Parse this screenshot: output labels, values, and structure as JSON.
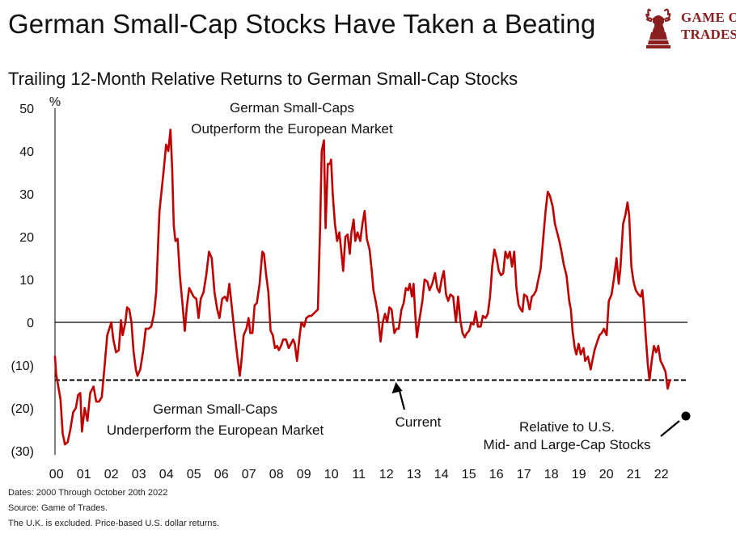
{
  "title": "German Small-Cap Stocks Have Taken a Beating",
  "subtitle": "Trailing 12-Month Relative Returns to German Small-Cap Stocks",
  "logo": {
    "line1": "GAME OF",
    "line2": "TRADES",
    "color": "#8b1f1f"
  },
  "footer": {
    "line1": "Dates: 2000 Through  October 20th 2022",
    "line2": "Source: Game of Trades.",
    "line3": "The U.K.  is excluded. Price-based U.S. dollar returns."
  },
  "chart_data": {
    "type": "line",
    "title": "Trailing 12-Month Relative Returns to German Small-Cap Stocks",
    "xlabel": "",
    "ylabel": "%",
    "xlim": [
      2000,
      2023
    ],
    "ylim": [
      -30,
      50
    ],
    "yticks": [
      50,
      40,
      30,
      20,
      10,
      0,
      -10,
      -20,
      -30
    ],
    "ytick_labels": [
      "50",
      "40",
      "30",
      "20",
      "10",
      "0",
      "(10)",
      "(20)",
      "(30)"
    ],
    "xticks": [
      2000,
      2001,
      2002,
      2003,
      2004,
      2005,
      2006,
      2007,
      2008,
      2009,
      2010,
      2011,
      2012,
      2013,
      2014,
      2015,
      2016,
      2017,
      2018,
      2019,
      2020,
      2021,
      2022
    ],
    "xtick_labels": [
      "00",
      "01",
      "02",
      "03",
      "04",
      "05",
      "06",
      "07",
      "08",
      "09",
      "10",
      "11",
      "12",
      "13",
      "14",
      "15",
      "16",
      "17",
      "18",
      "19",
      "20",
      "21",
      "22"
    ],
    "grid": false,
    "zero_line": true,
    "current_level": -13.5,
    "series": [
      {
        "color": "#c00000",
        "points": [
          [
            2000.0,
            -8
          ],
          [
            2000.04,
            -12
          ],
          [
            2000.12,
            -15
          ],
          [
            2000.2,
            -18
          ],
          [
            2000.28,
            -26
          ],
          [
            2000.36,
            -28.5
          ],
          [
            2000.46,
            -28
          ],
          [
            2000.56,
            -25
          ],
          [
            2000.66,
            -21
          ],
          [
            2000.76,
            -20
          ],
          [
            2000.84,
            -17
          ],
          [
            2000.92,
            -16.5
          ],
          [
            2000.98,
            -25.5
          ],
          [
            2001.08,
            -20
          ],
          [
            2001.18,
            -23
          ],
          [
            2001.28,
            -16.5
          ],
          [
            2001.4,
            -15
          ],
          [
            2001.5,
            -18.5
          ],
          [
            2001.6,
            -18.5
          ],
          [
            2001.7,
            -17.5
          ],
          [
            2001.8,
            -10.5
          ],
          [
            2001.9,
            -3
          ],
          [
            2002.0,
            -1
          ],
          [
            2002.05,
            0
          ],
          [
            2002.12,
            -4
          ],
          [
            2002.22,
            -7
          ],
          [
            2002.32,
            -6.5
          ],
          [
            2002.4,
            0.5
          ],
          [
            2002.46,
            -3
          ],
          [
            2002.56,
            0
          ],
          [
            2002.62,
            3.5
          ],
          [
            2002.7,
            3
          ],
          [
            2002.78,
            0
          ],
          [
            2002.86,
            -7
          ],
          [
            2002.94,
            -11
          ],
          [
            2003.0,
            -12.5
          ],
          [
            2003.1,
            -11
          ],
          [
            2003.2,
            -7
          ],
          [
            2003.3,
            -1.5
          ],
          [
            2003.4,
            -1.5
          ],
          [
            2003.5,
            -1
          ],
          [
            2003.6,
            2
          ],
          [
            2003.68,
            7
          ],
          [
            2003.76,
            20
          ],
          [
            2003.8,
            26
          ],
          [
            2003.88,
            31
          ],
          [
            2003.96,
            36
          ],
          [
            2004.04,
            41.5
          ],
          [
            2004.12,
            40
          ],
          [
            2004.2,
            45
          ],
          [
            2004.26,
            36
          ],
          [
            2004.32,
            22.5
          ],
          [
            2004.38,
            19
          ],
          [
            2004.46,
            19.5
          ],
          [
            2004.54,
            11
          ],
          [
            2004.64,
            4
          ],
          [
            2004.72,
            -2
          ],
          [
            2004.8,
            4
          ],
          [
            2004.88,
            8
          ],
          [
            2004.96,
            7
          ],
          [
            2005.04,
            6
          ],
          [
            2005.14,
            5.5
          ],
          [
            2005.22,
            1
          ],
          [
            2005.3,
            5.5
          ],
          [
            2005.4,
            7
          ],
          [
            2005.5,
            11
          ],
          [
            2005.6,
            16.5
          ],
          [
            2005.7,
            15
          ],
          [
            2005.8,
            7
          ],
          [
            2005.9,
            3
          ],
          [
            2005.98,
            1
          ],
          [
            2006.08,
            5.5
          ],
          [
            2006.18,
            6
          ],
          [
            2006.26,
            5
          ],
          [
            2006.34,
            9
          ],
          [
            2006.44,
            3
          ],
          [
            2006.54,
            -3
          ],
          [
            2006.64,
            -8.5
          ],
          [
            2006.72,
            -12.5
          ],
          [
            2006.78,
            -9
          ],
          [
            2006.86,
            -3
          ],
          [
            2006.96,
            -1.5
          ],
          [
            2007.04,
            1
          ],
          [
            2007.1,
            -2.5
          ],
          [
            2007.18,
            -2.5
          ],
          [
            2007.26,
            4
          ],
          [
            2007.34,
            4.5
          ],
          [
            2007.44,
            9
          ],
          [
            2007.54,
            16.5
          ],
          [
            2007.6,
            16
          ],
          [
            2007.68,
            11
          ],
          [
            2007.76,
            7
          ],
          [
            2007.84,
            -2
          ],
          [
            2007.92,
            -3
          ],
          [
            2008.0,
            -6
          ],
          [
            2008.08,
            -5.5
          ],
          [
            2008.14,
            -6.5
          ],
          [
            2008.22,
            -5.5
          ],
          [
            2008.3,
            -4
          ],
          [
            2008.4,
            -4
          ],
          [
            2008.5,
            -6
          ],
          [
            2008.58,
            -5
          ],
          [
            2008.66,
            -4
          ],
          [
            2008.72,
            -5
          ],
          [
            2008.8,
            -9
          ],
          [
            2008.9,
            -3
          ],
          [
            2008.96,
            0
          ],
          [
            2009.06,
            -1
          ],
          [
            2009.14,
            1
          ],
          [
            2009.24,
            1.5
          ],
          [
            2009.32,
            1.5
          ],
          [
            2009.4,
            2
          ],
          [
            2009.48,
            2.5
          ],
          [
            2009.56,
            3
          ],
          [
            2009.64,
            22
          ],
          [
            2009.7,
            40
          ],
          [
            2009.78,
            42.5
          ],
          [
            2009.84,
            22
          ],
          [
            2009.92,
            37
          ],
          [
            2010.0,
            37
          ],
          [
            2010.04,
            38
          ],
          [
            2010.1,
            30
          ],
          [
            2010.18,
            23
          ],
          [
            2010.26,
            19
          ],
          [
            2010.34,
            21
          ],
          [
            2010.42,
            16
          ],
          [
            2010.48,
            12
          ],
          [
            2010.56,
            20
          ],
          [
            2010.64,
            20.5
          ],
          [
            2010.72,
            16
          ],
          [
            2010.78,
            21
          ],
          [
            2010.86,
            24
          ],
          [
            2010.92,
            19
          ],
          [
            2011.0,
            21
          ],
          [
            2011.1,
            19
          ],
          [
            2011.18,
            23
          ],
          [
            2011.26,
            26
          ],
          [
            2011.34,
            19.5
          ],
          [
            2011.44,
            17
          ],
          [
            2011.52,
            12
          ],
          [
            2011.58,
            7.5
          ],
          [
            2011.66,
            5
          ],
          [
            2011.74,
            2
          ],
          [
            2011.84,
            -4.5
          ],
          [
            2011.92,
            0
          ],
          [
            2012.0,
            2
          ],
          [
            2012.08,
            0
          ],
          [
            2012.16,
            3.5
          ],
          [
            2012.24,
            3
          ],
          [
            2012.34,
            -2.5
          ],
          [
            2012.42,
            -1.5
          ],
          [
            2012.5,
            -1.5
          ],
          [
            2012.6,
            3
          ],
          [
            2012.68,
            4.5
          ],
          [
            2012.76,
            8
          ],
          [
            2012.84,
            7.5
          ],
          [
            2012.9,
            9
          ],
          [
            2012.98,
            6
          ],
          [
            2013.04,
            9
          ],
          [
            2013.1,
            2
          ],
          [
            2013.16,
            -3.5
          ],
          [
            2013.26,
            1
          ],
          [
            2013.36,
            5
          ],
          [
            2013.44,
            10
          ],
          [
            2013.54,
            9.5
          ],
          [
            2013.62,
            7.5
          ],
          [
            2013.72,
            9
          ],
          [
            2013.82,
            11.5
          ],
          [
            2013.9,
            8
          ],
          [
            2013.98,
            7
          ],
          [
            2014.06,
            10
          ],
          [
            2014.14,
            12
          ],
          [
            2014.22,
            6.5
          ],
          [
            2014.3,
            5
          ],
          [
            2014.38,
            6.5
          ],
          [
            2014.48,
            6
          ],
          [
            2014.58,
            0
          ],
          [
            2014.66,
            6
          ],
          [
            2014.74,
            0.5
          ],
          [
            2014.82,
            -2.5
          ],
          [
            2014.9,
            -3.5
          ],
          [
            2014.98,
            -2.5
          ],
          [
            2015.06,
            -2
          ],
          [
            2015.14,
            0
          ],
          [
            2015.22,
            -0.5
          ],
          [
            2015.3,
            2.5
          ],
          [
            2015.38,
            -1
          ],
          [
            2015.48,
            -1
          ],
          [
            2015.56,
            1.5
          ],
          [
            2015.66,
            1
          ],
          [
            2015.74,
            2
          ],
          [
            2015.82,
            6
          ],
          [
            2015.9,
            13
          ],
          [
            2015.98,
            17
          ],
          [
            2016.06,
            15
          ],
          [
            2016.14,
            12
          ],
          [
            2016.22,
            11
          ],
          [
            2016.3,
            11.5
          ],
          [
            2016.38,
            16.5
          ],
          [
            2016.46,
            15
          ],
          [
            2016.54,
            16.5
          ],
          [
            2016.62,
            13
          ],
          [
            2016.7,
            16.5
          ],
          [
            2016.78,
            8
          ],
          [
            2016.86,
            4
          ],
          [
            2016.94,
            3
          ],
          [
            2017.0,
            2.5
          ],
          [
            2017.06,
            6.5
          ],
          [
            2017.16,
            6
          ],
          [
            2017.26,
            3
          ],
          [
            2017.34,
            6
          ],
          [
            2017.42,
            6.5
          ],
          [
            2017.5,
            7.5
          ],
          [
            2017.56,
            9.5
          ],
          [
            2017.66,
            12.5
          ],
          [
            2017.76,
            20
          ],
          [
            2017.84,
            26
          ],
          [
            2017.92,
            30.5
          ],
          [
            2018.0,
            29.5
          ],
          [
            2018.1,
            27
          ],
          [
            2018.18,
            23
          ],
          [
            2018.26,
            21
          ],
          [
            2018.34,
            19
          ],
          [
            2018.42,
            16.5
          ],
          [
            2018.5,
            13.5
          ],
          [
            2018.6,
            11
          ],
          [
            2018.7,
            5
          ],
          [
            2018.76,
            3
          ],
          [
            2018.82,
            -2
          ],
          [
            2018.9,
            -6
          ],
          [
            2018.96,
            -7.5
          ],
          [
            2019.04,
            -5
          ],
          [
            2019.12,
            -7.5
          ],
          [
            2019.22,
            -6
          ],
          [
            2019.28,
            -9
          ],
          [
            2019.38,
            -8
          ],
          [
            2019.48,
            -11
          ],
          [
            2019.54,
            -9
          ],
          [
            2019.62,
            -6.5
          ],
          [
            2019.72,
            -4.5
          ],
          [
            2019.8,
            -3
          ],
          [
            2019.88,
            -2.5
          ],
          [
            2019.96,
            -1.5
          ],
          [
            2020.06,
            -3
          ],
          [
            2020.14,
            5
          ],
          [
            2020.24,
            6.5
          ],
          [
            2020.32,
            10
          ],
          [
            2020.42,
            15
          ],
          [
            2020.5,
            9
          ],
          [
            2020.56,
            12.5
          ],
          [
            2020.66,
            23
          ],
          [
            2020.74,
            25
          ],
          [
            2020.82,
            28
          ],
          [
            2020.88,
            25
          ],
          [
            2020.96,
            13
          ],
          [
            2021.04,
            9.5
          ],
          [
            2021.12,
            7.5
          ],
          [
            2021.22,
            6.5
          ],
          [
            2021.3,
            6
          ],
          [
            2021.36,
            7.5
          ],
          [
            2021.42,
            3
          ],
          [
            2021.48,
            -3
          ],
          [
            2021.56,
            -10
          ],
          [
            2021.62,
            -13.5
          ],
          [
            2021.7,
            -9
          ],
          [
            2021.78,
            -5.5
          ],
          [
            2021.86,
            -7
          ],
          [
            2021.94,
            -5.5
          ],
          [
            2022.02,
            -9
          ],
          [
            2022.1,
            -10
          ],
          [
            2022.2,
            -11.5
          ],
          [
            2022.28,
            -15.5
          ],
          [
            2022.36,
            -13.5
          ]
        ]
      }
    ],
    "annotations": {
      "outperform_line1": "German Small-Caps",
      "outperform_line2": "Outperform the European Market",
      "underperform_line1": "German Small-Caps",
      "underperform_line2": "Underperform the European Market",
      "current": "Current",
      "relative_line1": "Relative to U.S.",
      "relative_line2": "Mid- and Large-Cap Stocks"
    },
    "colors": {
      "series": "#c00000",
      "axis": "#000000",
      "text": "#111111"
    }
  }
}
